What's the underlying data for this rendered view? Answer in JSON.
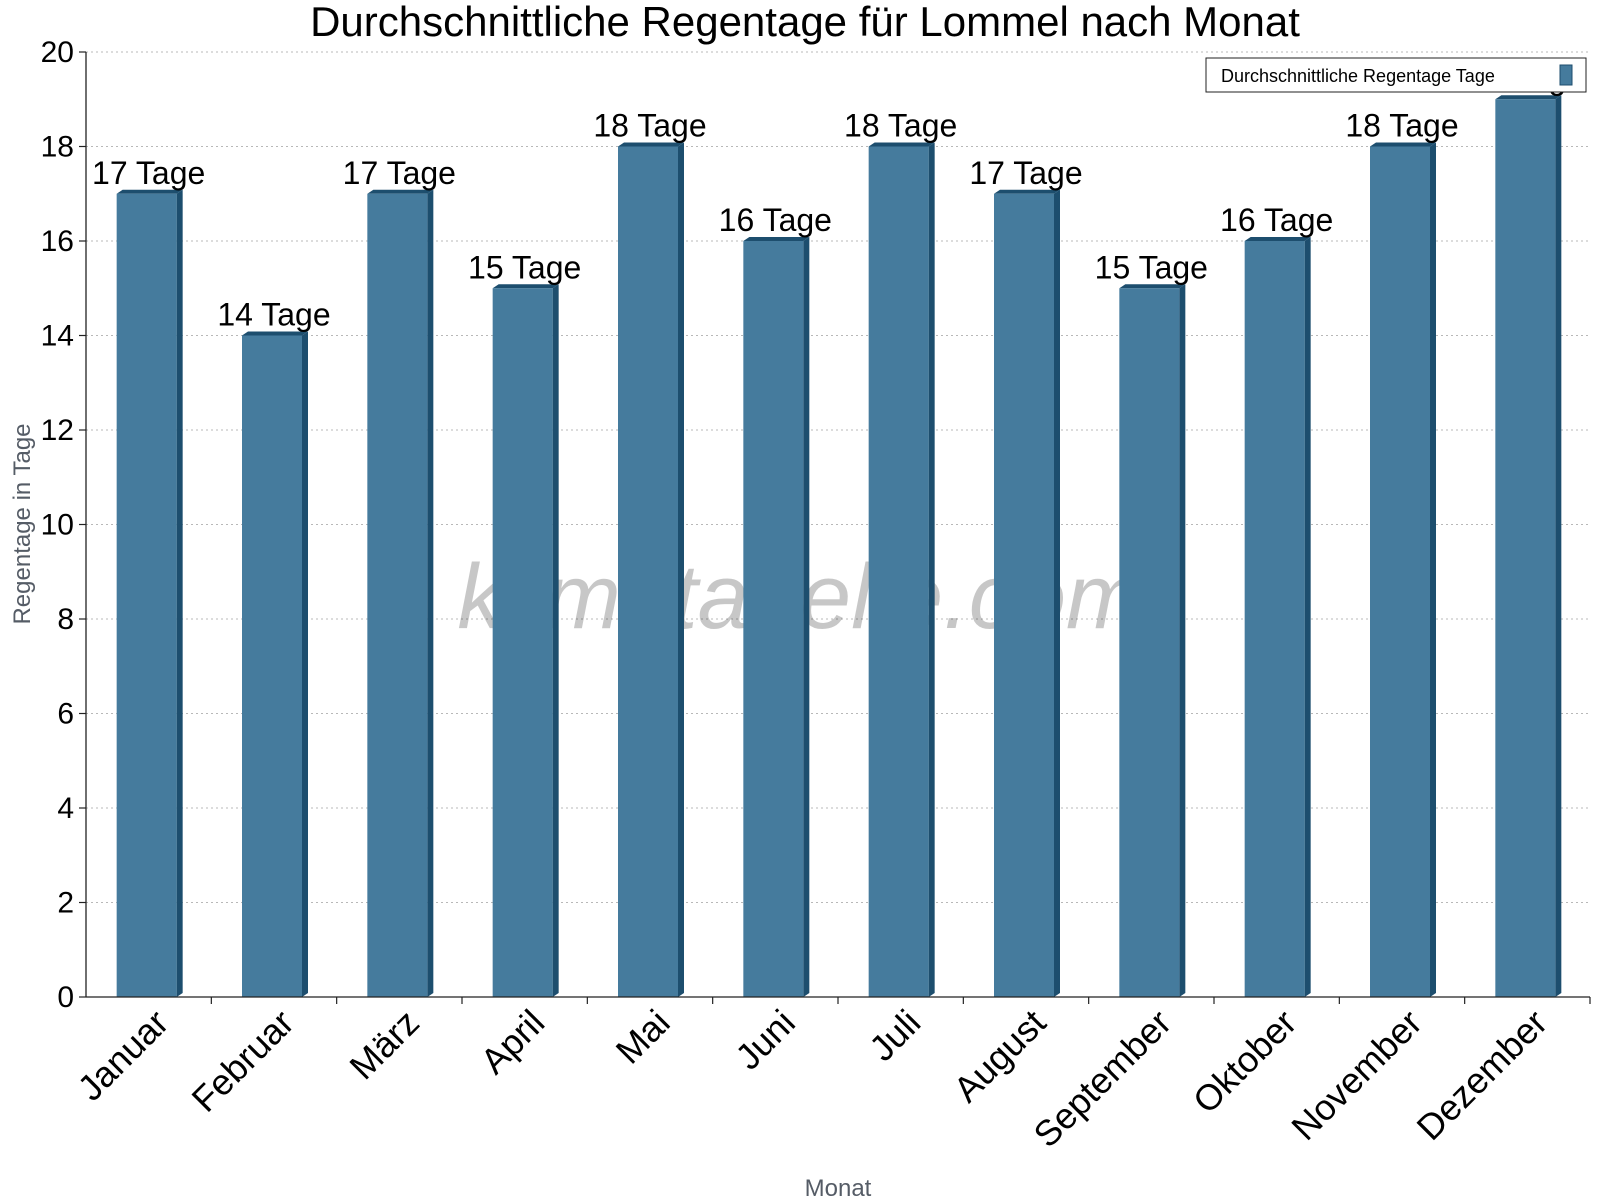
{
  "chart_data": {
    "type": "bar",
    "title": "Durchschnittliche Regentage für Lommel nach Monat",
    "xlabel": "Monat",
    "ylabel": "Regentage in Tage",
    "ylim": [
      0,
      20
    ],
    "yticks": [
      0,
      2,
      4,
      6,
      8,
      10,
      12,
      14,
      16,
      18,
      20
    ],
    "grid": true,
    "legend_position": "top-right",
    "categories": [
      "Januar",
      "Februar",
      "März",
      "April",
      "Mai",
      "Juni",
      "Juli",
      "August",
      "September",
      "Oktober",
      "November",
      "Dezember"
    ],
    "series": [
      {
        "name": "Durchschnittliche Regentage Tage",
        "values": [
          17,
          14,
          17,
          15,
          18,
          16,
          18,
          17,
          15,
          16,
          18,
          19
        ],
        "labels": [
          "17 Tage",
          "14 Tage",
          "17 Tage",
          "15 Tage",
          "18 Tage",
          "16 Tage",
          "18 Tage",
          "17 Tage",
          "15 Tage",
          "16 Tage",
          "18 Tage",
          "19 Tage"
        ],
        "color": "#457b9d",
        "edge_color": "#1d4e6e"
      }
    ]
  },
  "watermark": "klimatabelle.com"
}
